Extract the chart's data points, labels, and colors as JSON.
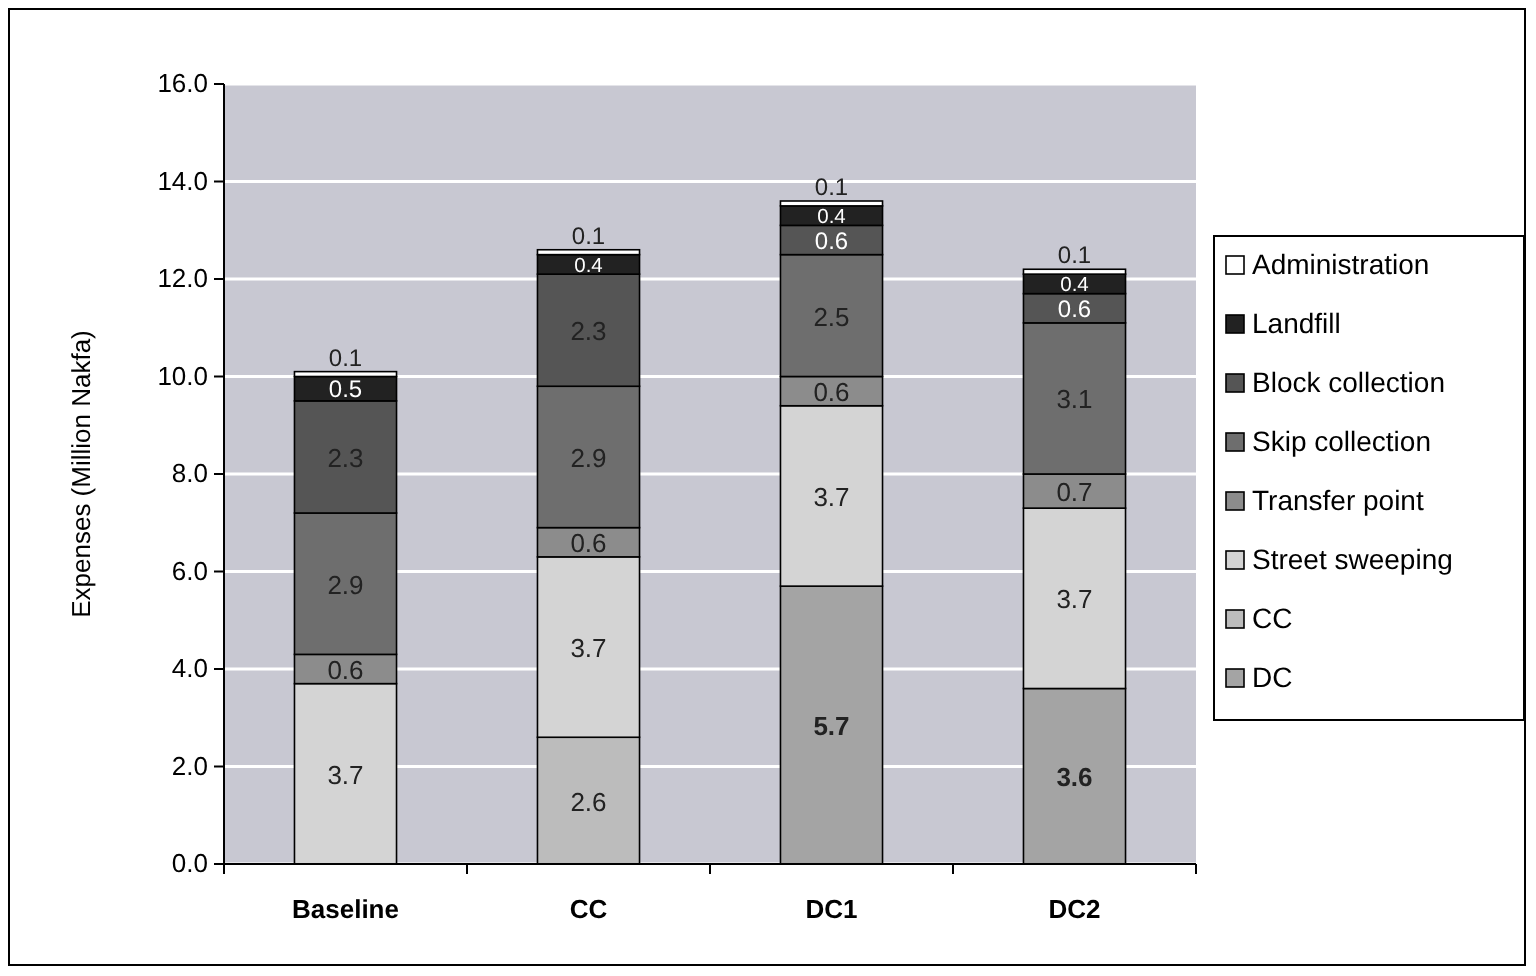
{
  "chart_data": {
    "type": "bar",
    "stacked": true,
    "ylabel": "Expenses (Million Nakfa)",
    "categories": [
      "Baseline",
      "CC",
      "DC1",
      "DC2"
    ],
    "ylim": [
      0,
      16
    ],
    "yticks": [
      {
        "value": 0,
        "label": "0.0"
      },
      {
        "value": 2,
        "label": "2.0"
      },
      {
        "value": 4,
        "label": "4.0"
      },
      {
        "value": 6,
        "label": "6.0"
      },
      {
        "value": 8,
        "label": "8.0"
      },
      {
        "value": 10,
        "label": "10.0"
      },
      {
        "value": 12,
        "label": "12.0"
      },
      {
        "value": 14,
        "label": "14.0"
      },
      {
        "value": 16,
        "label": "16.0"
      }
    ],
    "grid": "y",
    "legend": "right",
    "series": [
      {
        "name": "DC",
        "color": "#a4a4a4",
        "values": [
          0,
          0,
          5.7,
          3.6
        ],
        "value_labels": [
          null,
          null,
          "5.7",
          "3.6"
        ]
      },
      {
        "name": "CC",
        "color": "#bcbcbc",
        "values": [
          0,
          2.6,
          0,
          0
        ],
        "value_labels": [
          null,
          "2.6",
          null,
          null
        ]
      },
      {
        "name": "Street sweeping",
        "color": "#d4d4d4",
        "values": [
          3.7,
          3.7,
          3.7,
          3.7
        ],
        "value_labels": [
          "3.7",
          "3.7",
          "3.7",
          "3.7"
        ]
      },
      {
        "name": "Transfer point",
        "color": "#8c8c8c",
        "values": [
          0.6,
          0.6,
          0.6,
          0.7
        ],
        "value_labels": [
          "0.6",
          "0.6",
          "0.6",
          "0.7"
        ]
      },
      {
        "name": "Skip collection",
        "color": "#6e6e6e",
        "values": [
          2.9,
          2.9,
          2.5,
          3.1
        ],
        "value_labels": [
          "2.9",
          "2.9",
          "2.5",
          "3.1"
        ]
      },
      {
        "name": "Block collection",
        "color": "#555555",
        "values": [
          2.3,
          2.3,
          0.6,
          0.6
        ],
        "value_labels": [
          "2.3",
          "2.3",
          "0.6",
          "0.6"
        ]
      },
      {
        "name": "Landfill",
        "color": "#222222",
        "values": [
          0.5,
          0.4,
          0.4,
          0.4
        ],
        "value_labels": [
          "0.5",
          "0.4",
          "0.4",
          "0.4"
        ]
      },
      {
        "name": "Administration",
        "color": "#ffffff",
        "values": [
          0.1,
          0.1,
          0.1,
          0.1
        ],
        "value_labels": [
          "0.1",
          "0.1",
          "0.1",
          "0.1"
        ]
      }
    ]
  }
}
